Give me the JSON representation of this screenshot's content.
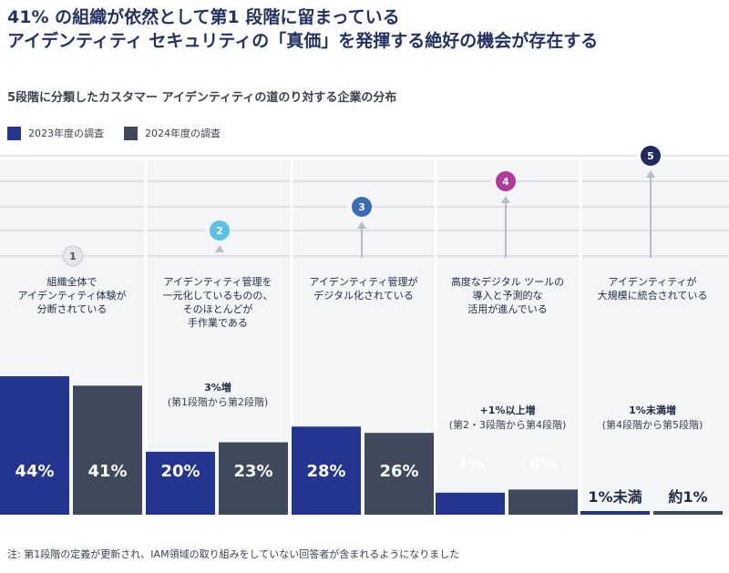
{
  "title_lines": [
    "41% の組織が依然として第1 段階に留まっている",
    "アイデンティティ セキュリティの「真価」を発揮する絶好の機会が存在する"
  ],
  "subtitle": "5段階に分類したカスタマー アイデンティティの道のり対する企業の分布",
  "legend": [
    {
      "label": "2023年度の調査",
      "color": "#24358f"
    },
    {
      "label": "2024年度の調査",
      "color": "#3e4a5b"
    }
  ],
  "footnote": "注: 第1段階の定義が更新され、IAM領域の取り組みをしていない回答者が含まれるようになりました",
  "stages": [
    {
      "number": "1",
      "label": [
        "組織全体で",
        "アイデンティティ体験が",
        "分断されている"
      ],
      "badge_color": "#e4e6ea",
      "badge_text_color": "#4a5060",
      "change": null
    },
    {
      "number": "2",
      "label": [
        "アイデンティティ管理を",
        "一元化しているものの、",
        "そのほとんどが",
        "手作業である"
      ],
      "badge_color": "#5bc0e6",
      "badge_text_color": "#ffffff",
      "change": {
        "headline": "3%増",
        "detail": "(第1段階から第2段階)"
      }
    },
    {
      "number": "3",
      "label": [
        "アイデンティティ管理が",
        "デジタル化されている"
      ],
      "badge_color": "#3a6cb5",
      "badge_text_color": "#ffffff",
      "change": null
    },
    {
      "number": "4",
      "label": [
        "高度なデジタル ツールの",
        "導入と予測的な",
        "活用が進んでいる"
      ],
      "badge_color": "#b23a9a",
      "badge_text_color": "#ffffff",
      "change": {
        "headline": "+1%以上増",
        "detail": "(第2・3段階から第4段階)"
      }
    },
    {
      "number": "5",
      "label": [
        "アイデンティティが",
        "大規模に統合されている"
      ],
      "badge_color": "#1f2a5e",
      "badge_text_color": "#ffffff",
      "change": {
        "headline": "1%未満増",
        "detail": "(第4段階から第5段階)"
      }
    }
  ],
  "chart_data": {
    "type": "bar",
    "title": "5段階に分類したカスタマー アイデンティティの道のり対する企業の分布",
    "categories": [
      "第1段階",
      "第2段階",
      "第3段階",
      "第4段階",
      "第5段階"
    ],
    "series": [
      {
        "name": "2023年度の調査",
        "values": [
          44,
          20,
          28,
          7,
          0.5
        ],
        "labels": [
          "44%",
          "20%",
          "28%",
          "7%",
          "1%未満"
        ]
      },
      {
        "name": "2024年度の調査",
        "values": [
          41,
          23,
          26,
          8,
          1
        ],
        "labels": [
          "41%",
          "23%",
          "26%",
          "8%",
          "約1%"
        ]
      }
    ],
    "ylim": [
      0,
      44
    ],
    "xlabel": "",
    "ylabel": ""
  }
}
